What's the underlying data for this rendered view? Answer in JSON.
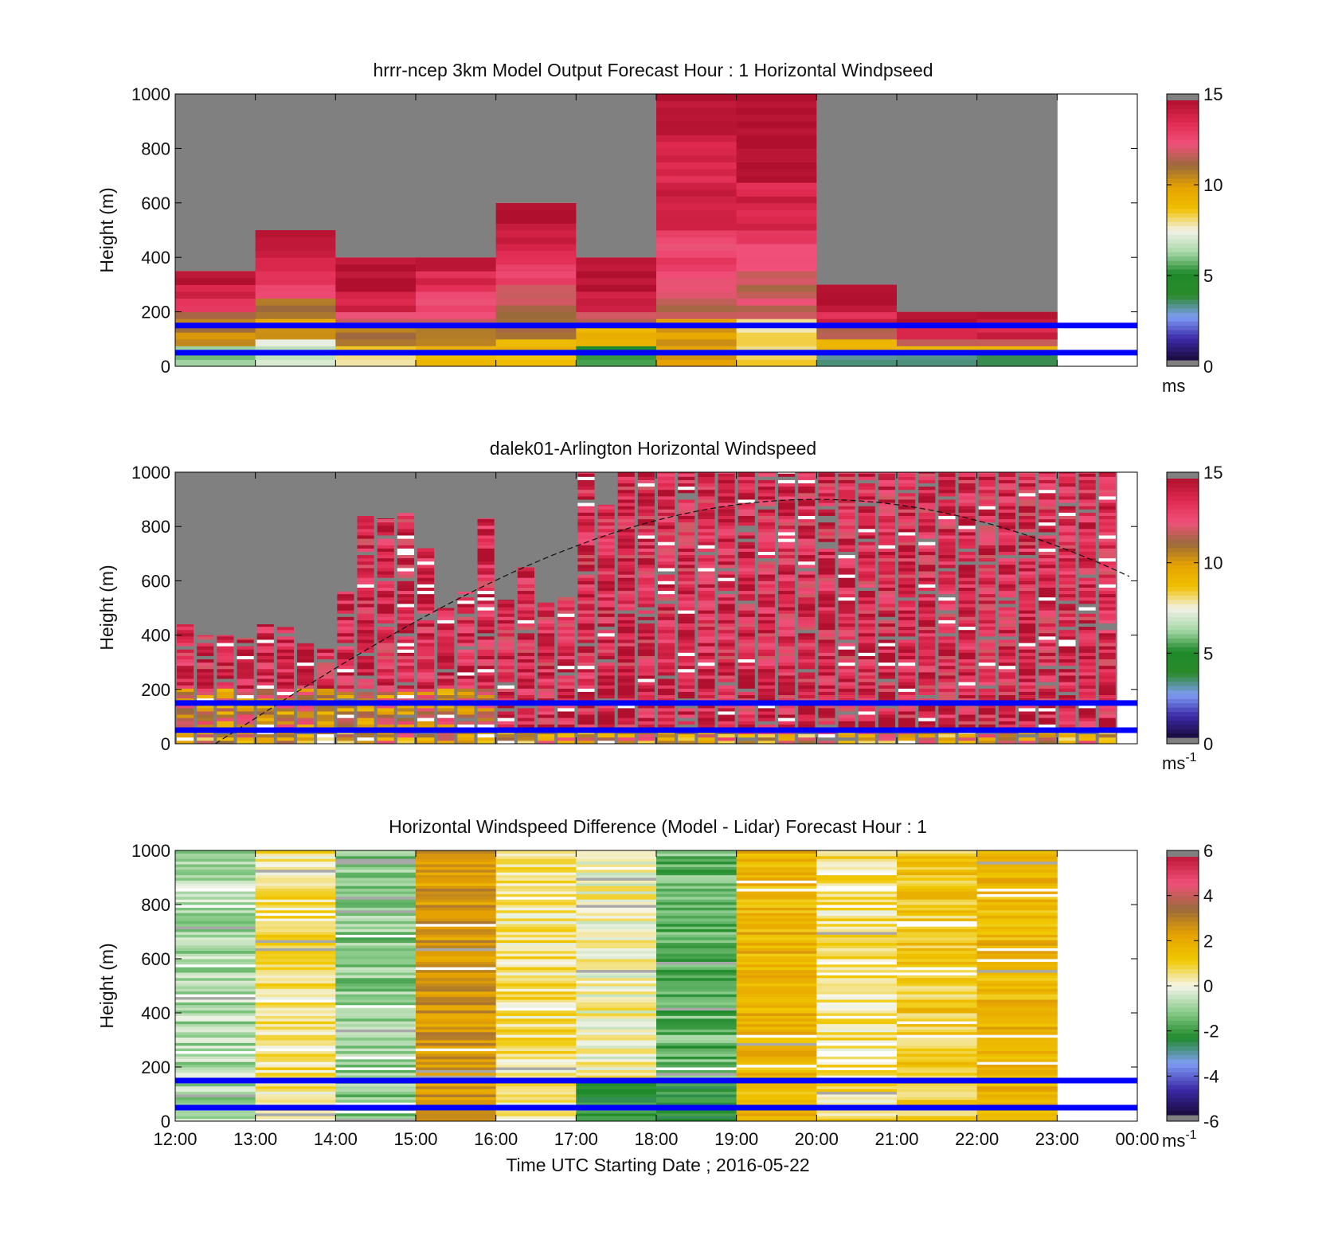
{
  "chart_data": [
    {
      "type": "heatmap",
      "title": "hrrr-ncep 3km Model Output   Forecast Hour : 1 Horizontal Windpseed",
      "ylabel": "Height (m)",
      "xlabel": "",
      "ylim": [
        0,
        1000
      ],
      "yticks": [
        "0",
        "200",
        "400",
        "600",
        "800",
        "1000"
      ],
      "xlim_hours": [
        12,
        24
      ],
      "colorbar": {
        "min": 0,
        "max": 15,
        "ticks": [
          "0",
          "5",
          "10",
          "15"
        ],
        "unit": "ms"
      },
      "reference_lines_m": [
        50,
        150
      ],
      "hourly_top_m": [
        350,
        500,
        400,
        400,
        600,
        400,
        1000,
        1000,
        300,
        200,
        200
      ],
      "hourly_windspeed_profile_ms": [
        [
          6,
          10,
          11,
          13,
          14,
          15
        ],
        [
          7,
          10,
          11,
          13,
          14,
          15
        ],
        [
          8,
          11,
          12,
          14,
          15,
          15
        ],
        [
          9,
          11,
          12,
          13,
          14,
          15
        ],
        [
          9,
          11,
          12,
          13,
          14,
          15
        ],
        [
          5,
          9,
          12,
          14,
          15,
          15
        ],
        [
          10,
          12,
          13,
          14,
          14,
          15
        ],
        [
          8,
          12,
          13,
          14,
          15,
          15
        ],
        [
          3,
          9,
          12,
          14,
          15,
          15
        ],
        [
          3,
          9,
          12,
          14,
          15,
          15
        ],
        [
          3,
          9,
          12,
          14,
          15,
          15
        ]
      ]
    },
    {
      "type": "heatmap",
      "title": "dalek01-Arlington  Horizontal Windspeed",
      "ylabel": "Height (m)",
      "xlabel": "",
      "ylim": [
        0,
        1000
      ],
      "yticks": [
        "0",
        "200",
        "400",
        "600",
        "800",
        "1000"
      ],
      "xlim_hours": [
        12,
        24
      ],
      "colorbar": {
        "min": 0,
        "max": 15,
        "ticks": [
          "0",
          "5",
          "10",
          "15"
        ],
        "unit": "ms",
        "unit_exp": "-1"
      },
      "reference_lines_m": [
        50,
        150
      ],
      "boundary_layer_curve_m": {
        "start_hour": 12.5,
        "peak_hour": 20,
        "peak_m": 900,
        "end_hour": 23.9,
        "end_m": 580
      },
      "sample_interval_min": 15,
      "column_top_m": [
        440,
        400,
        400,
        390,
        440,
        430,
        370,
        350,
        560,
        850,
        830,
        850,
        720,
        500,
        560,
        830,
        530,
        650,
        520,
        540,
        1000,
        880,
        1000,
        1000,
        1000,
        1000,
        1000,
        1000,
        1000,
        1000,
        1000,
        1000,
        1000,
        1000,
        1000,
        1000,
        1000,
        1000,
        1000,
        1000,
        1000,
        1000,
        1000,
        1000,
        1000,
        1000,
        1000
      ]
    },
    {
      "type": "heatmap",
      "title": "Horizontal Windspeed Difference (Model - Lidar) Forecast Hour : 1",
      "ylabel": "Height (m)",
      "xlabel": "Time UTC  Starting Date ; 2016-05-22",
      "ylim": [
        0,
        1000
      ],
      "yticks": [
        "0",
        "200",
        "400",
        "600",
        "800",
        "1000"
      ],
      "xticks": [
        "12:00",
        "13:00",
        "14:00",
        "15:00",
        "16:00",
        "17:00",
        "18:00",
        "19:00",
        "20:00",
        "21:00",
        "22:00",
        "23:00",
        "00:00"
      ],
      "colorbar": {
        "min": -6,
        "max": 6,
        "ticks": [
          "-6",
          "-4",
          "-2",
          "0",
          "2",
          "4",
          "6"
        ],
        "unit": "ms",
        "unit_exp": "-1"
      },
      "reference_lines_m": [
        50,
        150
      ],
      "hourly_mean_difference_ms": [
        -0.8,
        0.6,
        -1.2,
        2.6,
        0.6,
        0.2,
        -1.6,
        1.8,
        0.6,
        1.2,
        1.8
      ]
    }
  ],
  "colors": {
    "missing": "#808080",
    "reference_line": "#0000ff",
    "speed_scale": [
      "#1a0a3c",
      "#3b2aa8",
      "#7f9cf5",
      "#2a8a2a",
      "#1f8a2a",
      "#a8d8a8",
      "#f2f2e8",
      "#f0c000",
      "#e6a200",
      "#9a6a3c",
      "#f0507a",
      "#e02a50",
      "#b0102e"
    ],
    "diff_scale": [
      "#1a0a3c",
      "#3b2aa8",
      "#7f9cf5",
      "#1f8a2a",
      "#8acb8a",
      "#f5f5ea",
      "#f0c800",
      "#e6a200",
      "#9a6a3c",
      "#f0507a",
      "#c01838"
    ]
  }
}
